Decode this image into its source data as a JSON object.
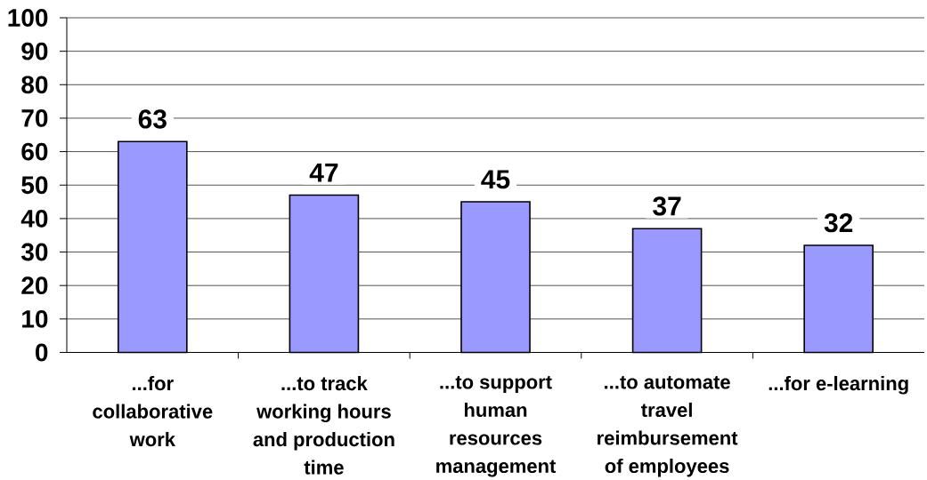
{
  "chart_data": {
    "type": "bar",
    "categories": [
      "...for collaborative work",
      "...to track working hours and production time",
      "...to support human resources management",
      "...to automate travel reimbursement of employees",
      "...for e-learning"
    ],
    "values": [
      63,
      47,
      45,
      37,
      32
    ],
    "color": "#9999ff",
    "ylim": [
      0,
      100
    ],
    "yticks": [
      0,
      10,
      20,
      30,
      40,
      50,
      60,
      70,
      80,
      90,
      100
    ],
    "grid": "y",
    "data_labels": true
  }
}
